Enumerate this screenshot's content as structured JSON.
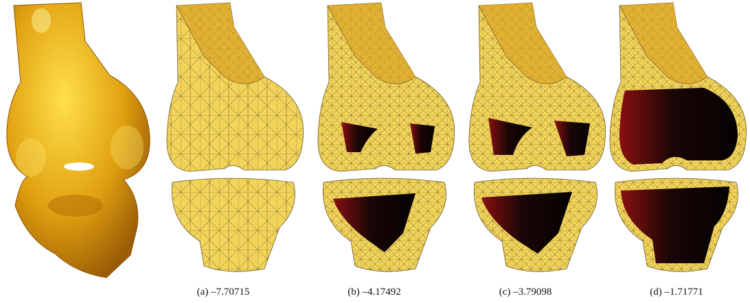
{
  "figure": {
    "captions": [
      "(a) –7.70715",
      "(b) –4.17492",
      "(c) –3.79098",
      "(d) –1.71771"
    ]
  }
}
